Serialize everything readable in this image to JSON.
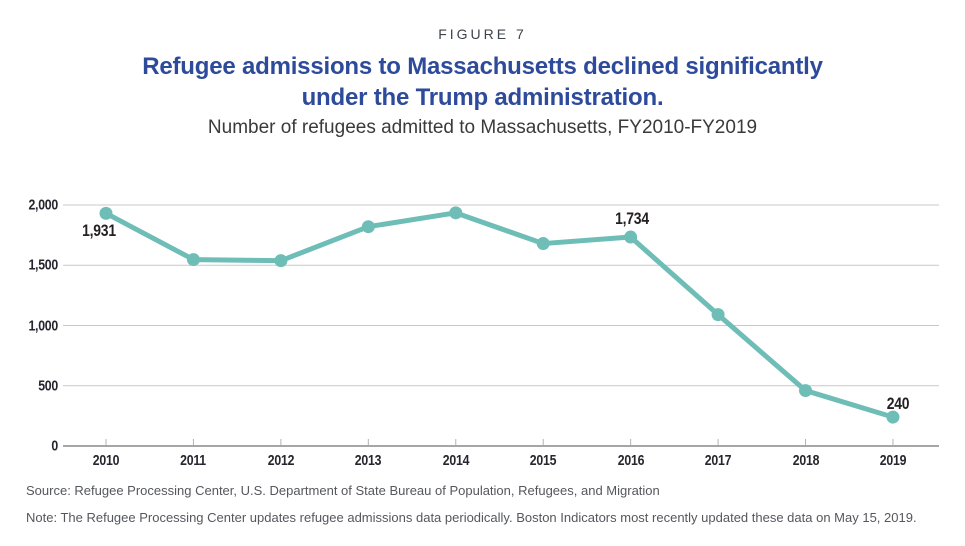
{
  "figure_label": "FIGURE 7",
  "title": {
    "line1": "Refugee admissions to Massachusetts declined significantly",
    "line2": "under the Trump administration."
  },
  "subtitle": "Number of refugees admitted to Massachusetts, FY2010-FY2019",
  "footer": {
    "source": "Source: Refugee Processing Center, U.S. Department of State Bureau of Population, Refugees, and Migration",
    "note": "Note: The Refugee Processing Center updates refugee admissions data periodically. Boston Indicators most recently updated these data on May 15, 2019."
  },
  "colors": {
    "line": "#6fbdb7",
    "marker": "#6fbdb7",
    "title_blue": "#2d4a9b",
    "grid": "#c9c9c9",
    "axis": "#a6a6a6",
    "tick": "#b3b3b3",
    "tick_text": "#26262e",
    "footer_text": "#55575c"
  },
  "chart_data": {
    "type": "line",
    "title": "Number of refugees admitted to Massachusetts, FY2010-FY2019",
    "xlabel": "",
    "ylabel": "",
    "x": [
      "2010",
      "2011",
      "2012",
      "2013",
      "2014",
      "2015",
      "2016",
      "2017",
      "2018",
      "2019"
    ],
    "values": [
      1931,
      1547,
      1538,
      1820,
      1935,
      1680,
      1734,
      1090,
      460,
      240
    ],
    "point_labels": [
      {
        "x": "2010",
        "text": "1,931"
      },
      {
        "x": "2016",
        "text": "1,734"
      },
      {
        "x": "2019",
        "text": "240"
      }
    ],
    "ylim": [
      0,
      2000
    ],
    "ytick_values": [
      0,
      500,
      1000,
      1500,
      2000
    ],
    "ytick_labels": [
      "0",
      "500",
      "1,000",
      "1,500",
      "2,000"
    ],
    "grid": "horizontal",
    "legend": "none"
  }
}
